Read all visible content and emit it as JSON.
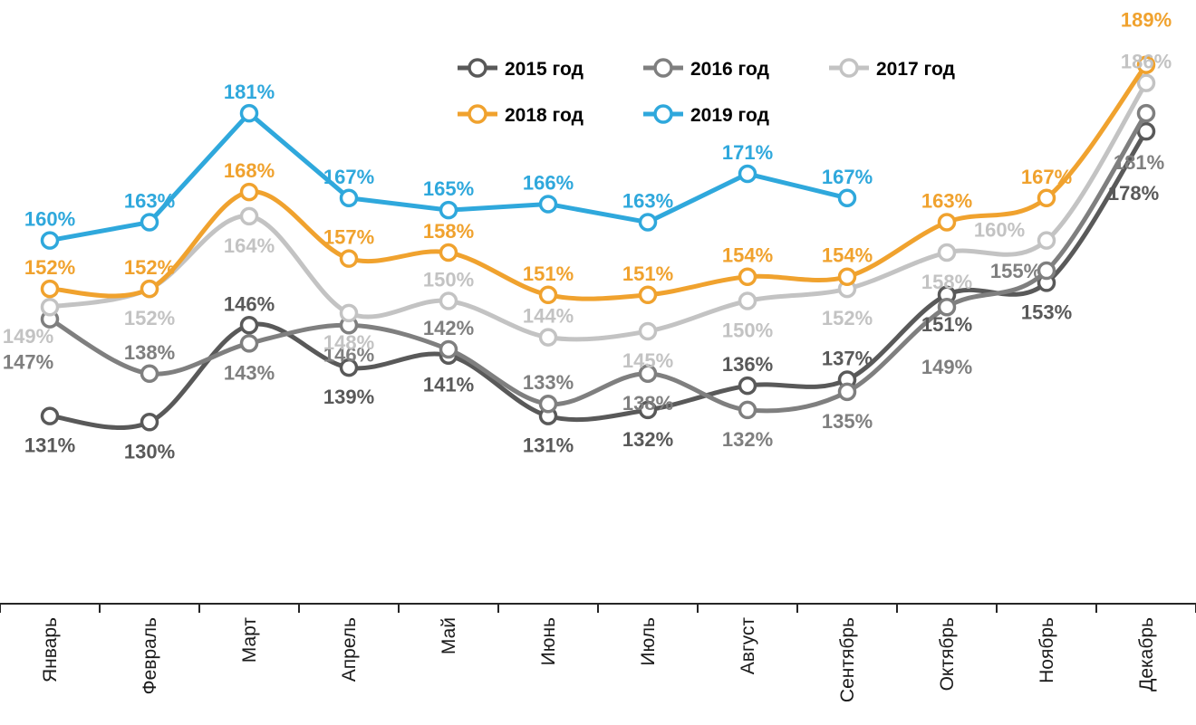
{
  "chart_data": {
    "type": "line",
    "title": "",
    "categories": [
      "Январь",
      "Февраль",
      "Март",
      "Апрель",
      "Май",
      "Июнь",
      "Июль",
      "Август",
      "Сентябрь",
      "Октябрь",
      "Ноябрь",
      "Декабрь"
    ],
    "value_suffix": "%",
    "ylim": [
      100,
      195
    ],
    "grid": false,
    "legend_position": "top-center",
    "legend_rows": [
      [
        0,
        1,
        2
      ],
      [
        3,
        4
      ]
    ],
    "series": [
      {
        "name": "2015 год",
        "color": "#595959",
        "smooth": true,
        "values": [
          131,
          130,
          146,
          139,
          141,
          131,
          132,
          136,
          137,
          151,
          153,
          178
        ],
        "label_pos": [
          "b",
          "b",
          "a",
          "b",
          "b",
          "b",
          "b",
          "a",
          "a",
          "b",
          "b",
          [
            -14,
            76
          ]
        ]
      },
      {
        "name": "2016 год",
        "color": "#7F7F7F",
        "smooth": true,
        "values": [
          147,
          138,
          143,
          146,
          142,
          133,
          138,
          132,
          135,
          149,
          155,
          181
        ],
        "label_pos": [
          [
            -24,
            55
          ],
          "a",
          "b",
          "b",
          "a",
          "a",
          "b",
          "b",
          "b",
          [
            0,
            74
          ],
          [
            -34,
            8
          ],
          [
            -8,
            62
          ]
        ]
      },
      {
        "name": "2017 год",
        "color": "#C3C3C3",
        "smooth": true,
        "values": [
          149,
          152,
          164,
          148,
          150,
          144,
          145,
          150,
          152,
          158,
          160,
          186
        ],
        "label_pos": [
          [
            -24,
            40
          ],
          "b",
          "b",
          "b",
          "a",
          "a",
          "b",
          "b",
          "b",
          "b",
          [
            -52,
            -4
          ],
          "a"
        ]
      },
      {
        "name": "2018 год",
        "color": "#F0A22E",
        "smooth": true,
        "values": [
          152,
          152,
          168,
          157,
          158,
          151,
          151,
          154,
          154,
          163,
          167,
          189
        ],
        "label_pos": [
          "a",
          "a",
          "a",
          "a",
          "a",
          "a",
          "a",
          "a",
          "a",
          "a",
          "a",
          [
            0,
            -42
          ]
        ]
      },
      {
        "name": "2019 год",
        "color": "#2FA8DC",
        "smooth": false,
        "values": [
          160,
          163,
          181,
          167,
          165,
          166,
          163,
          171,
          167
        ],
        "label_pos": [
          "a",
          "a",
          "a",
          "a",
          "a",
          "a",
          "a",
          "a",
          "a"
        ]
      }
    ],
    "axis": {
      "color": "#262626",
      "tick_count": 13
    },
    "label_text_color_follows_series": true
  }
}
